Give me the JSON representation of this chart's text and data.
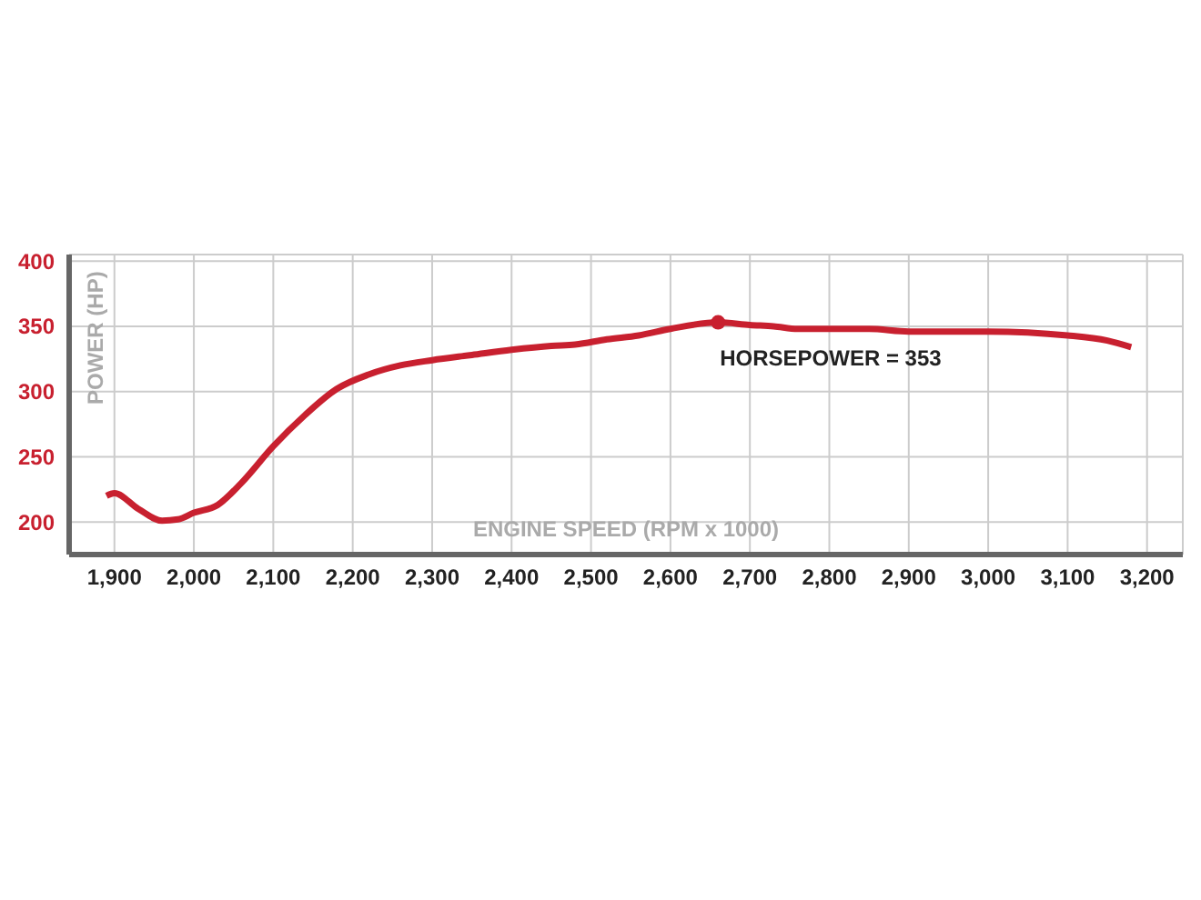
{
  "chart_data": {
    "type": "line",
    "xlabel": "ENGINE SPEED (RPM x 1000)",
    "ylabel": "POWER (HP)",
    "x": [
      1890,
      1900,
      1930,
      1960,
      1980,
      2000,
      2030,
      2060,
      2100,
      2140,
      2180,
      2220,
      2260,
      2300,
      2350,
      2400,
      2450,
      2480,
      2520,
      2560,
      2600,
      2660,
      2700,
      2730,
      2760,
      2850,
      2900,
      3000,
      3100,
      3150,
      3180
    ],
    "series": [
      {
        "color": "#c8202f",
        "values": [
          220,
          222,
          210,
          201,
          202,
          207,
          213,
          230,
          258,
          282,
          302,
          313,
          320,
          324,
          328,
          332,
          335,
          336,
          340,
          343,
          348,
          353,
          351,
          350,
          348,
          348,
          346,
          346,
          343,
          339,
          334
        ]
      }
    ],
    "xlim": [
      1843,
      3245
    ],
    "xticks": [
      {
        "value": 1900,
        "label": "1,900"
      },
      {
        "value": 2000,
        "label": "2,000"
      },
      {
        "value": 2100,
        "label": "2,100"
      },
      {
        "value": 2200,
        "label": "2,200"
      },
      {
        "value": 2300,
        "label": "2,300"
      },
      {
        "value": 2400,
        "label": "2,400"
      },
      {
        "value": 2500,
        "label": "2,500"
      },
      {
        "value": 2600,
        "label": "2,600"
      },
      {
        "value": 2700,
        "label": "2,700"
      },
      {
        "value": 2800,
        "label": "2,800"
      },
      {
        "value": 2900,
        "label": "2,900"
      },
      {
        "value": 3000,
        "label": "3,000"
      },
      {
        "value": 3100,
        "label": "3,100"
      },
      {
        "value": 3200,
        "label": "3,200"
      }
    ],
    "ylim": [
      175,
      405
    ],
    "yticks": [
      200,
      250,
      300,
      350,
      400
    ],
    "annotations": [
      {
        "text": "HORSEPOWER = 353",
        "x": 2660,
        "y": 353
      }
    ],
    "grid": true,
    "marker": "none",
    "line_style": "solid"
  }
}
